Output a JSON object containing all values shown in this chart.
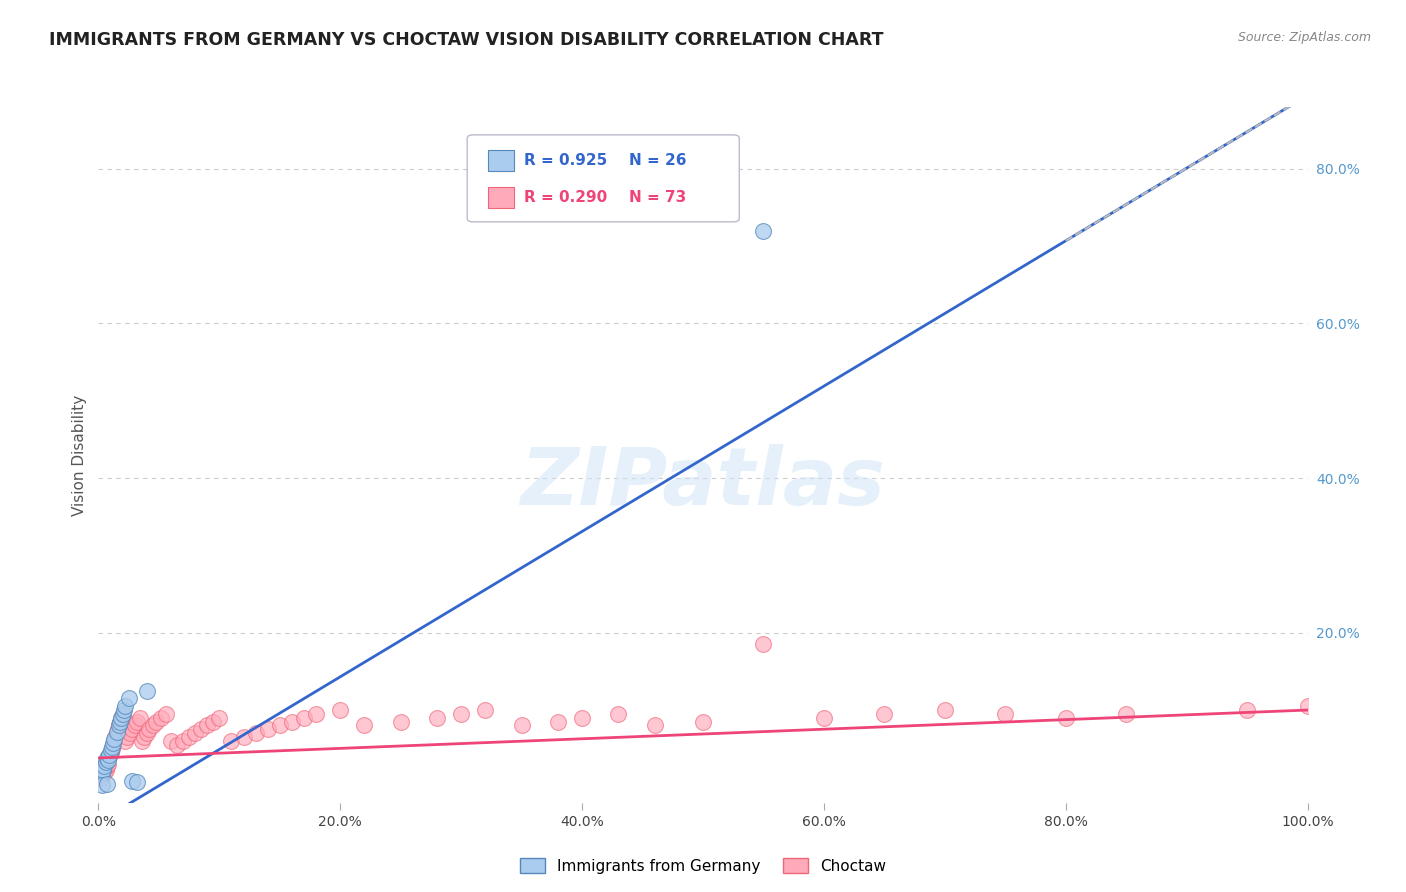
{
  "title": "IMMIGRANTS FROM GERMANY VS CHOCTAW VISION DISABILITY CORRELATION CHART",
  "source": "Source: ZipAtlas.com",
  "ylabel": "Vision Disability",
  "xlim": [
    0,
    1.0
  ],
  "ylim": [
    -0.02,
    0.88
  ],
  "xticks": [
    0.0,
    0.2,
    0.4,
    0.6,
    0.8,
    1.0
  ],
  "xticklabels": [
    "0.0%",
    "20.0%",
    "40.0%",
    "60.0%",
    "80.0%",
    "100.0%"
  ],
  "yticks_right": [
    0.2,
    0.4,
    0.6,
    0.8
  ],
  "yticklabels_right": [
    "20.0%",
    "40.0%",
    "60.0%",
    "80.0%"
  ],
  "watermark_text": "ZIPatlas",
  "legend_r1": "R = 0.925",
  "legend_n1": "N = 26",
  "legend_r2": "R = 0.290",
  "legend_n2": "N = 73",
  "legend_label1": "Immigrants from Germany",
  "legend_label2": "Choctaw",
  "blue_scatter_color_face": "#aaccee",
  "blue_scatter_color_edge": "#5588bb",
  "pink_scatter_color_face": "#ffaabb",
  "pink_scatter_color_edge": "#ee6677",
  "blue_line_color": "#3366cc",
  "pink_line_color": "#ee4477",
  "dashed_line_color": "#bbbbbb",
  "grid_color": "#cccccc",
  "title_color": "#222222",
  "source_color": "#888888",
  "axis_label_color": "#555555",
  "right_tick_color": "#5599cc",
  "blue_line_slope": 0.94,
  "blue_line_intercept": -0.045,
  "pink_line_slope": 0.062,
  "pink_line_intercept": 0.038,
  "blue_scatter_x": [
    0.002,
    0.003,
    0.004,
    0.005,
    0.006,
    0.007,
    0.008,
    0.009,
    0.01,
    0.011,
    0.012,
    0.013,
    0.015,
    0.017,
    0.018,
    0.019,
    0.02,
    0.021,
    0.022,
    0.025,
    0.028,
    0.032,
    0.04,
    0.55,
    0.003,
    0.007
  ],
  "blue_scatter_y": [
    0.02,
    0.018,
    0.022,
    0.028,
    0.033,
    0.038,
    0.035,
    0.042,
    0.048,
    0.052,
    0.058,
    0.063,
    0.072,
    0.08,
    0.085,
    0.09,
    0.095,
    0.1,
    0.105,
    0.115,
    0.008,
    0.007,
    0.125,
    0.72,
    0.003,
    0.004
  ],
  "pink_scatter_x": [
    0.001,
    0.002,
    0.003,
    0.004,
    0.005,
    0.006,
    0.007,
    0.008,
    0.009,
    0.01,
    0.011,
    0.012,
    0.013,
    0.014,
    0.015,
    0.016,
    0.017,
    0.018,
    0.019,
    0.02,
    0.022,
    0.024,
    0.026,
    0.028,
    0.03,
    0.032,
    0.034,
    0.036,
    0.038,
    0.04,
    0.042,
    0.045,
    0.048,
    0.052,
    0.056,
    0.06,
    0.065,
    0.07,
    0.075,
    0.08,
    0.085,
    0.09,
    0.095,
    0.1,
    0.11,
    0.12,
    0.13,
    0.14,
    0.15,
    0.16,
    0.17,
    0.18,
    0.2,
    0.22,
    0.25,
    0.28,
    0.3,
    0.32,
    0.35,
    0.38,
    0.4,
    0.43,
    0.46,
    0.5,
    0.55,
    0.6,
    0.65,
    0.7,
    0.75,
    0.8,
    0.85,
    0.95,
    1.0
  ],
  "pink_scatter_y": [
    0.015,
    0.012,
    0.02,
    0.025,
    0.018,
    0.022,
    0.028,
    0.03,
    0.04,
    0.045,
    0.05,
    0.055,
    0.06,
    0.065,
    0.07,
    0.075,
    0.08,
    0.085,
    0.09,
    0.095,
    0.06,
    0.065,
    0.07,
    0.075,
    0.08,
    0.085,
    0.09,
    0.06,
    0.065,
    0.07,
    0.075,
    0.08,
    0.085,
    0.09,
    0.095,
    0.06,
    0.055,
    0.06,
    0.065,
    0.07,
    0.075,
    0.08,
    0.085,
    0.09,
    0.06,
    0.065,
    0.07,
    0.075,
    0.08,
    0.085,
    0.09,
    0.095,
    0.1,
    0.08,
    0.085,
    0.09,
    0.095,
    0.1,
    0.08,
    0.085,
    0.09,
    0.095,
    0.08,
    0.085,
    0.185,
    0.09,
    0.095,
    0.1,
    0.095,
    0.09,
    0.095,
    0.1,
    0.105
  ]
}
